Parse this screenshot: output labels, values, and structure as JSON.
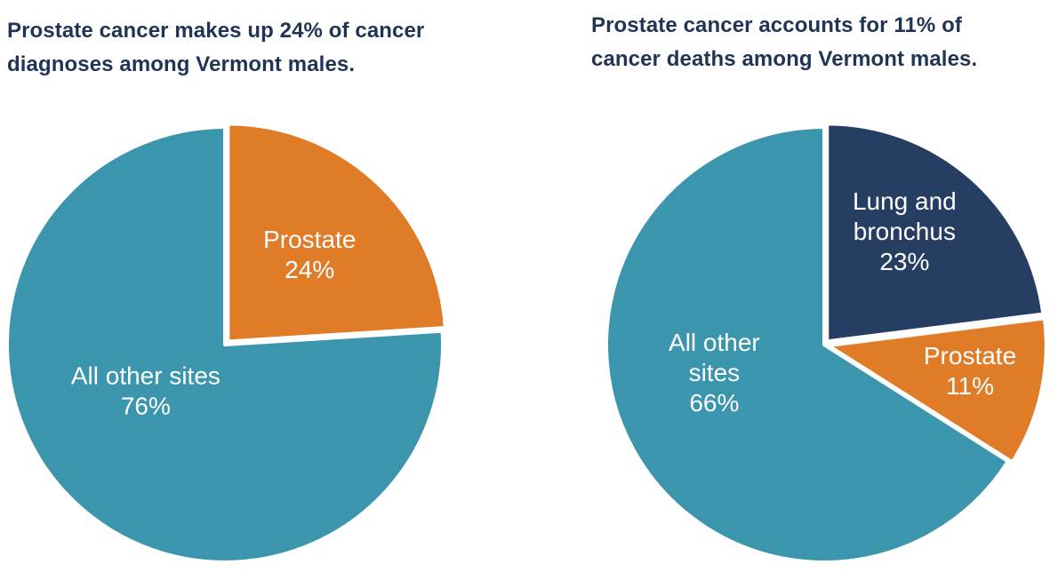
{
  "theme": {
    "background": "#ffffff",
    "title_color": "#1f3456",
    "label_color": "#ffffff",
    "teal": "#3a95ad",
    "orange": "#e07b28",
    "navy": "#253e61"
  },
  "chart_data": [
    {
      "type": "pie",
      "title": "Prostate cancer makes up 24% of cancer diagnoses among Vermont males.",
      "start_angle": 0,
      "direction": "clockwise",
      "legend": "none",
      "slices": [
        {
          "name": "Prostate",
          "value": 24,
          "unit": "%",
          "color": "#e07b28",
          "label_lines": [
            "Prostate",
            "24%"
          ],
          "label_angle": 43,
          "label_radius": 0.55,
          "explode": 0.02
        },
        {
          "name": "All other sites",
          "value": 76,
          "unit": "%",
          "color": "#3a95ad",
          "label_lines": [
            "All other sites",
            "76%"
          ],
          "label_angle": 240,
          "label_radius": 0.42,
          "explode": 0
        }
      ]
    },
    {
      "type": "pie",
      "title": "Prostate cancer accounts for 11% of cancer deaths among Vermont males.",
      "start_angle": 0,
      "direction": "clockwise",
      "legend": "none",
      "slices": [
        {
          "name": "Lung and bronchus",
          "value": 23,
          "unit": "%",
          "color": "#253e61",
          "label_lines": [
            "Lung and",
            "bronchus",
            "23%"
          ],
          "label_angle": 35,
          "label_radius": 0.62,
          "explode": 0.02
        },
        {
          "name": "Prostate",
          "value": 11,
          "unit": "%",
          "color": "#e07b28",
          "label_lines": [
            "Prostate",
            "11%"
          ],
          "label_angle": 100,
          "label_radius": 0.66,
          "explode": 0.02
        },
        {
          "name": "All other sites",
          "value": 66,
          "unit": "%",
          "color": "#3a95ad",
          "label_lines": [
            "All other",
            "sites",
            "66%"
          ],
          "label_angle": 256,
          "label_radius": 0.52,
          "explode": 0
        }
      ]
    }
  ]
}
